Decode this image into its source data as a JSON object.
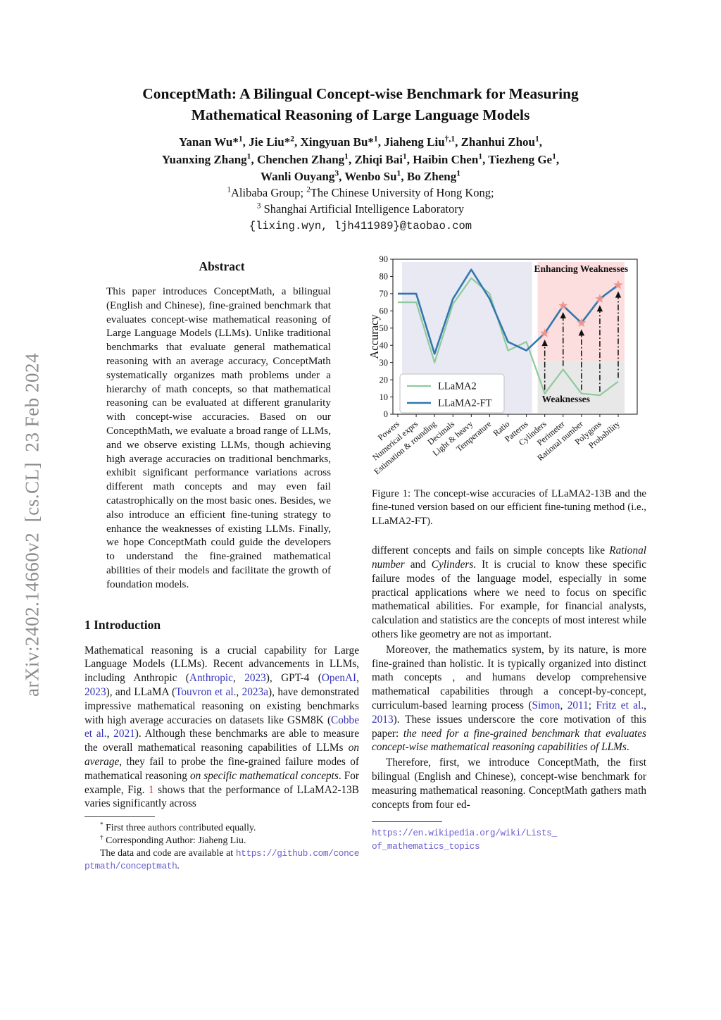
{
  "arxiv": {
    "banner": "arXiv:2402.14660v2  [cs.CL]  23 Feb 2024",
    "banner_color": "#8c8c8c"
  },
  "title": {
    "line1": "ConceptMath: A Bilingual Concept-wise Benchmark for Measuring",
    "line2": "Mathematical Reasoning of Large Language Models"
  },
  "authors": {
    "line1": [
      {
        "t": "Yanan Wu*"
      },
      {
        "t": "1",
        "c": "sup"
      },
      {
        "t": ", Jie Liu*"
      },
      {
        "t": "2",
        "c": "sup"
      },
      {
        "t": ", Xingyuan Bu*"
      },
      {
        "t": "1",
        "c": "sup"
      },
      {
        "t": ", Jiaheng Liu"
      },
      {
        "t": "†,1",
        "c": "sup"
      },
      {
        "t": ", Zhanhui Zhou"
      },
      {
        "t": "1",
        "c": "sup"
      },
      {
        "t": ","
      }
    ],
    "line2": [
      {
        "t": "Yuanxing Zhang"
      },
      {
        "t": "1",
        "c": "sup"
      },
      {
        "t": ", Chenchen Zhang"
      },
      {
        "t": "1",
        "c": "sup"
      },
      {
        "t": ", Zhiqi Bai"
      },
      {
        "t": "1",
        "c": "sup"
      },
      {
        "t": ", Haibin Chen"
      },
      {
        "t": "1",
        "c": "sup"
      },
      {
        "t": ", Tiezheng Ge"
      },
      {
        "t": "1",
        "c": "sup"
      },
      {
        "t": ","
      }
    ],
    "line3": [
      {
        "t": "Wanli Ouyang"
      },
      {
        "t": "3",
        "c": "sup"
      },
      {
        "t": ", Wenbo Su"
      },
      {
        "t": "1",
        "c": "sup"
      },
      {
        "t": ", Bo Zheng"
      },
      {
        "t": "1",
        "c": "sup"
      }
    ]
  },
  "affiliations": {
    "line1": [
      {
        "t": "1",
        "c": "sup"
      },
      {
        "t": "Alibaba Group; "
      },
      {
        "t": "2",
        "c": "sup"
      },
      {
        "t": "The Chinese University of Hong Kong;"
      }
    ],
    "line2": [
      {
        "t": "3",
        "c": "sup"
      },
      {
        "t": " Shanghai Artificial Intelligence Laboratory"
      }
    ],
    "email": "{lixing.wyn, ljh411989}@taobao.com"
  },
  "abstract": {
    "heading": "Abstract",
    "text": "This paper introduces ConceptMath, a bilingual (English and Chinese), fine-grained benchmark that evaluates concept-wise mathematical reasoning of Large Language Models (LLMs). Unlike traditional benchmarks that evaluate general mathematical reasoning with an average accuracy, ConceptMath systematically organizes math problems under a hierarchy of math concepts, so that mathematical reasoning can be evaluated at different granularity with concept-wise accuracies. Based on our ConcepthMath, we evaluate a broad range of LLMs, and we observe existing LLMs, though achieving high average accuracies on traditional benchmarks, exhibit significant performance variations across different math concepts and may even fail catastrophically on the most basic ones. Besides, we also introduce an efficient fine-tuning strategy to enhance the weaknesses of existing LLMs. Finally, we hope ConceptMath could guide the developers to understand the fine-grained mathematical abilities of their models and facilitate the growth of foundation models."
  },
  "intro": {
    "heading": "1    Introduction",
    "para1": [
      {
        "t": "Mathematical reasoning is a crucial capability for Large Language Models (LLMs). Recent advancements in LLMs, including Anthropic ("
      },
      {
        "t": "Anthropic",
        "c": "link"
      },
      {
        "t": ", "
      },
      {
        "t": "2023",
        "c": "link"
      },
      {
        "t": "), GPT-4 ("
      },
      {
        "t": "OpenAI",
        "c": "link"
      },
      {
        "t": ", "
      },
      {
        "t": "2023",
        "c": "link"
      },
      {
        "t": "), and LLaMA ("
      },
      {
        "t": "Touvron et al.",
        "c": "link"
      },
      {
        "t": ", "
      },
      {
        "t": "2023a",
        "c": "link"
      },
      {
        "t": "), have demonstrated impressive mathematical reasoning on existing benchmarks with high average accuracies on datasets like GSM8K ("
      },
      {
        "t": "Cobbe et al.",
        "c": "link"
      },
      {
        "t": ", "
      },
      {
        "t": "2021",
        "c": "link"
      },
      {
        "t": "). Although these benchmarks are able to measure the overall mathematical reasoning capabilities of LLMs "
      },
      {
        "t": "on average",
        "c": "italic"
      },
      {
        "t": ", they fail to probe the fine-grained failure modes of mathematical reasoning "
      },
      {
        "t": "on specific mathematical concepts",
        "c": "italic"
      },
      {
        "t": ". For example, Fig. "
      },
      {
        "t": "1",
        "c": "figref"
      },
      {
        "t": " shows that the performance of LLaMA2-13B varies significantly across"
      }
    ]
  },
  "left_footnotes": {
    "fn1": [
      {
        "t": "*",
        "c": "sup"
      },
      {
        "t": " First three authors contributed equally."
      }
    ],
    "fn2": [
      {
        "t": "†",
        "c": "sup"
      },
      {
        "t": " Corresponding Author: Jiaheng Liu."
      }
    ],
    "fn3": [
      {
        "t": "The data and code are available at "
      },
      {
        "t": "https://github.com/conceptmath/conceptmath",
        "c": "mono-link"
      },
      {
        "t": "."
      }
    ]
  },
  "figure1": {
    "caption": "Figure 1: The concept-wise accuracies of LLaMA2-13B and the fine-tuned version based on our efficient fine-tuning method (i.e., LLaMA2-FT)."
  },
  "right_column": {
    "para1": [
      {
        "t": "different concepts and fails on simple concepts like "
      },
      {
        "t": "Rational number",
        "c": "italic"
      },
      {
        "t": " and "
      },
      {
        "t": "Cylinders",
        "c": "italic"
      },
      {
        "t": ". It is crucial to know these specific failure modes of the language model, especially in some practical applications where we need to focus on specific mathematical abilities. For example, for financial analysts, calculation and statistics are the concepts of most interest while others like geometry are not as important."
      }
    ],
    "para2": [
      {
        "t": "Moreover, the mathematics system, by its nature, is more fine-grained than holistic. It is typically organized into distinct math concepts , and humans develop comprehensive mathematical capabilities through a concept-by-concept, curriculum-based learning process ("
      },
      {
        "t": "Simon",
        "c": "link"
      },
      {
        "t": ", "
      },
      {
        "t": "2011",
        "c": "link"
      },
      {
        "t": "; "
      },
      {
        "t": "Fritz et al.",
        "c": "link"
      },
      {
        "t": ", "
      },
      {
        "t": "2013",
        "c": "link"
      },
      {
        "t": "). These issues underscore the core motivation of this paper: "
      },
      {
        "t": "the need for a fine-grained benchmark that evaluates concept-wise mathematical reasoning capabilities of LLMs",
        "c": "italic"
      },
      {
        "t": "."
      }
    ],
    "para3": [
      {
        "t": "Therefore, first, we introduce ConceptMath, the first bilingual (English and Chinese), concept-wise benchmark for measuring mathematical reasoning. ConceptMath gathers math concepts from four ed-"
      }
    ],
    "footnote": [
      {
        "t": "https://en.wikipedia.org/wiki/Lists_",
        "c": "mono-link"
      },
      {
        "c": "break"
      },
      {
        "t": "of_mathematics_topics",
        "c": "mono-link"
      }
    ]
  },
  "chart_data": {
    "type": "line",
    "ylabel": "Accuracy",
    "ylim": [
      0,
      90
    ],
    "ytick_step": 10,
    "grid": false,
    "legend_position": "lower left",
    "categories": [
      "Powers",
      "Numerical exprs",
      "Estimation & rounding",
      "Decimals",
      "Light & heavy",
      "Temperature",
      "Ratio",
      "Patterns",
      "Cylinders",
      "Perimeter",
      "Rational number",
      "Polygons",
      "Probability"
    ],
    "series": [
      {
        "name": "LLaMA2",
        "color": "#8fca9c",
        "values": [
          65,
          65,
          30,
          64,
          79,
          70,
          37,
          42,
          12,
          26,
          12,
          11,
          19
        ]
      },
      {
        "name": "LLaMA2-FT",
        "color": "#3278ae",
        "values": [
          70,
          70,
          35,
          67,
          84,
          67,
          42,
          37,
          47,
          63,
          53,
          67,
          75
        ]
      }
    ],
    "highlight_indices": [
      8,
      9,
      10,
      11,
      12
    ],
    "star_color": "#f2928c",
    "arrow_color": "#111111",
    "regions": {
      "base": {
        "color": "#e9e9f4"
      },
      "enhancing": {
        "label": "Enhancing Weaknesses",
        "color": "#fbdedd"
      },
      "weaknesses": {
        "label": "Weaknesses",
        "color": "#e8e8e8",
        "top_value": 31
      }
    }
  }
}
